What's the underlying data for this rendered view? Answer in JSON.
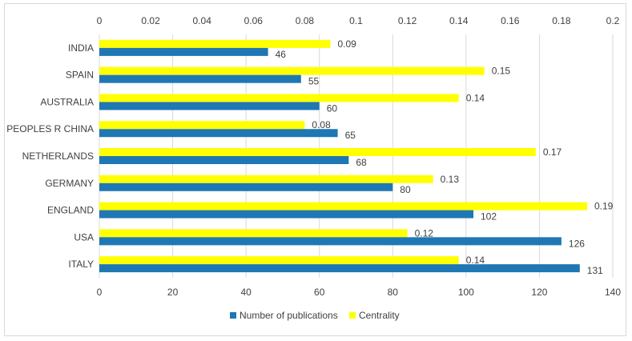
{
  "chart_data": {
    "type": "bar",
    "orientation": "horizontal",
    "categories": [
      "INDIA",
      "SPAIN",
      "AUSTRALIA",
      "PEOPLES R CHINA",
      "NETHERLANDS",
      "GERMANY",
      "ENGLAND",
      "USA",
      "ITALY"
    ],
    "series": [
      {
        "name": "Number of publications",
        "values": [
          46,
          55,
          60,
          65,
          68,
          80,
          102,
          126,
          131
        ],
        "color": "#1f77b4",
        "axis": "bottom"
      },
      {
        "name": "Centrality",
        "values": [
          0.09,
          0.15,
          0.14,
          0.08,
          0.17,
          0.13,
          0.19,
          0.12,
          0.14
        ],
        "color": "#ffff00",
        "axis": "top"
      }
    ],
    "x_bottom": {
      "range": [
        0,
        140
      ],
      "ticks": [
        "0",
        "20",
        "40",
        "60",
        "80",
        "100",
        "120",
        "140"
      ]
    },
    "x_top": {
      "range": [
        0,
        0.2
      ],
      "ticks": [
        "0",
        "0.02",
        "0.04",
        "0.06",
        "0.08",
        "0.1",
        "0.12",
        "0.14",
        "0.16",
        "0.18",
        "0.2"
      ]
    },
    "legend_position": "bottom",
    "grid": true
  }
}
